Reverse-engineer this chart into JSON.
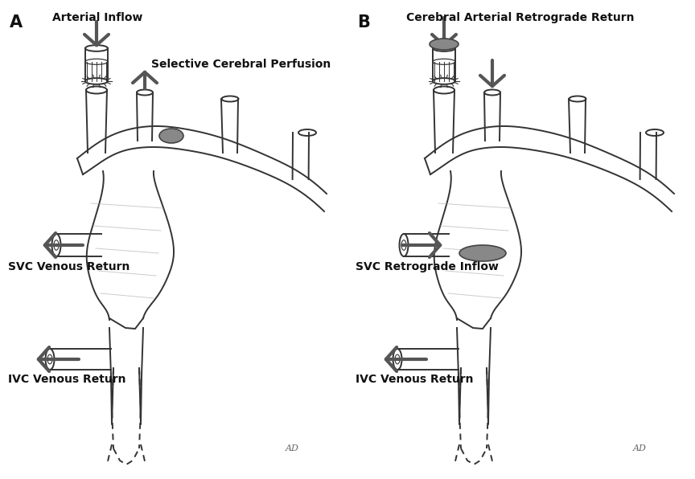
{
  "fig_width": 8.64,
  "fig_height": 5.96,
  "bg_color": "#ffffff",
  "line_color": "#333333",
  "arrow_color": "#555555",
  "gray_dark": "#555555",
  "gray_med": "#888888",
  "gray_light": "#bbbbbb",
  "label_A": "A",
  "label_B": "B",
  "text_arterial_inflow": "Arterial Inflow",
  "text_selective": "Selective Cerebral Perfusion",
  "text_svc_venous": "SVC Venous Return",
  "text_ivc_venous_A": "IVC Venous Return",
  "text_cerebral_retrograde": "Cerebral Arterial Retrograde Return",
  "text_svc_retrograde": "SVC Retrograde Inflow",
  "text_ivc_venous_B": "IVC Venous Return",
  "ad_label": "AD",
  "panel_A_ox": 0,
  "panel_B_ox": 432
}
